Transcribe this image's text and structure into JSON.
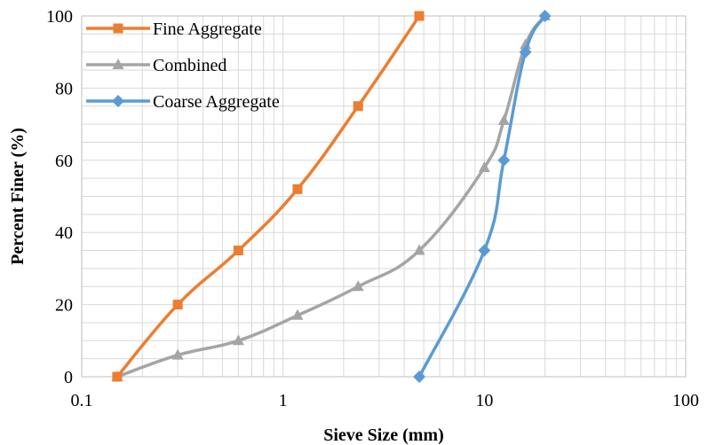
{
  "chart_data": {
    "type": "line",
    "title": "",
    "xlabel": "Sieve Size (mm)",
    "ylabel": "Percent Finer (%)",
    "x_scale": "log",
    "xlim": [
      0.1,
      100
    ],
    "ylim": [
      0,
      100
    ],
    "x_ticks": [
      0.1,
      1,
      10,
      100
    ],
    "x_tick_labels": [
      "0.1",
      "1",
      "10",
      "100"
    ],
    "y_ticks": [
      0,
      20,
      40,
      60,
      80,
      100
    ],
    "y_tick_labels": [
      "0",
      "20",
      "40",
      "60",
      "80",
      "100"
    ],
    "grid": true,
    "legend_position": "top-left",
    "series": [
      {
        "name": "Fine Aggregate",
        "color": "#ED7D31",
        "marker": "square",
        "points": [
          [
            0.15,
            0
          ],
          [
            0.3,
            20
          ],
          [
            0.6,
            35
          ],
          [
            1.18,
            52
          ],
          [
            2.36,
            75
          ],
          [
            4.75,
            100
          ]
        ]
      },
      {
        "name": "Combined",
        "color": "#A5A5A5",
        "marker": "triangle",
        "points": [
          [
            0.15,
            0
          ],
          [
            0.3,
            6
          ],
          [
            0.6,
            10
          ],
          [
            1.18,
            17
          ],
          [
            2.36,
            25
          ],
          [
            4.75,
            35
          ],
          [
            10,
            58
          ],
          [
            12.5,
            71
          ],
          [
            16,
            92
          ],
          [
            20,
            100
          ]
        ]
      },
      {
        "name": "Coarse Aggregate",
        "color": "#5B9BD5",
        "marker": "diamond",
        "points": [
          [
            4.75,
            0
          ],
          [
            10,
            35
          ],
          [
            12.5,
            60
          ],
          [
            16,
            90
          ],
          [
            20,
            100
          ]
        ]
      }
    ]
  }
}
